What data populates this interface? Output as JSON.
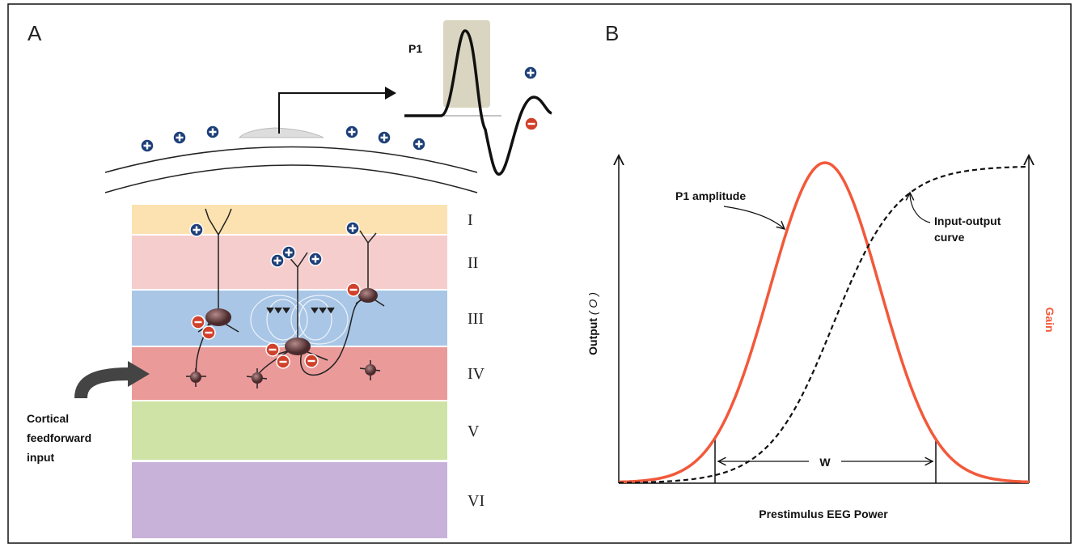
{
  "panel_a": {
    "label": "A",
    "waveform_label": "P1",
    "layers": [
      "I",
      "II",
      "III",
      "IV",
      "V",
      "VI"
    ],
    "input_label": [
      "Cortical",
      "feedforward",
      "input"
    ]
  },
  "panel_b": {
    "label": "B",
    "gaussian_label": "P1 amplitude",
    "sigmoid_label": [
      "Input-output",
      "curve"
    ],
    "y_axis_label": "Output",
    "y_axis_symbol": "( O )",
    "y2_axis_label": "Gain",
    "width_label": "W",
    "x_axis_label": "Prestimulus EEG Power"
  }
}
